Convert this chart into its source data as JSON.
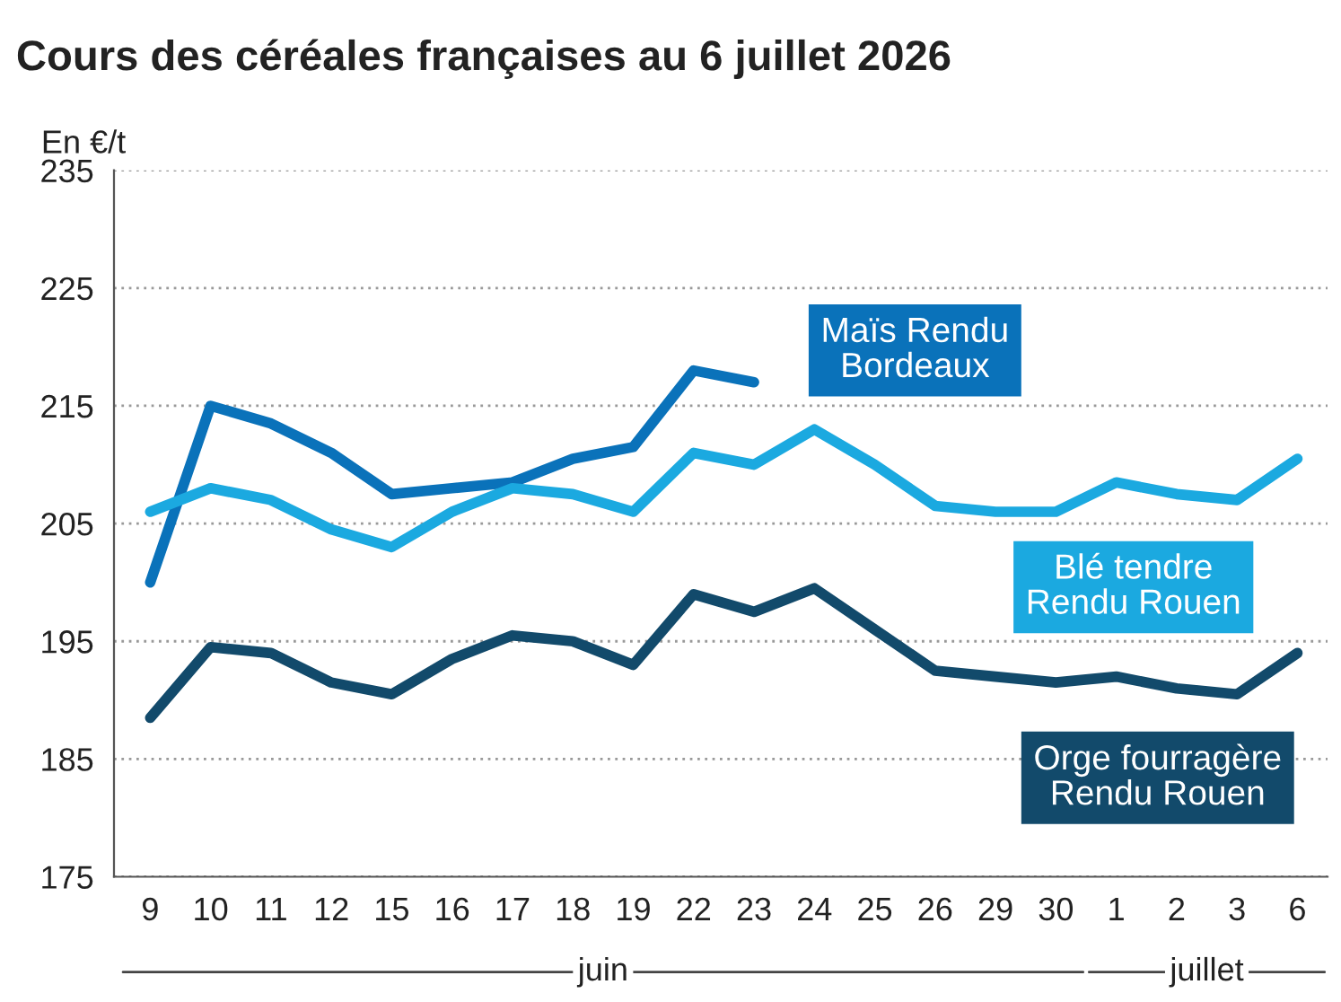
{
  "chart_data": {
    "type": "line",
    "title": "Cours des céréales françaises au 6 juillet 2026",
    "ylabel": "En €/t",
    "categories": [
      "9",
      "10",
      "11",
      "12",
      "15",
      "16",
      "17",
      "18",
      "19",
      "22",
      "23",
      "24",
      "25",
      "26",
      "29",
      "30",
      "1",
      "2",
      "3",
      "6"
    ],
    "series": [
      {
        "name": "Maïs Rendu\nBordeaux",
        "color": "#0a72ba",
        "values": [
          200,
          215,
          213.5,
          211,
          207.5,
          208,
          208.5,
          210.5,
          211.5,
          218,
          217,
          null,
          null,
          null,
          null,
          null,
          null,
          null,
          null,
          null
        ]
      },
      {
        "name": "Blé tendre\nRendu Rouen",
        "color": "#1ba9e0",
        "values": [
          206,
          208,
          207,
          204.5,
          203,
          206,
          208,
          207.5,
          206,
          211,
          210,
          213,
          210,
          206.5,
          206,
          206,
          208.5,
          207.5,
          207,
          210.5
        ]
      },
      {
        "name": "Orge fourragère\nRendu Rouen",
        "color": "#124a6b",
        "values": [
          188.5,
          194.5,
          194,
          191.5,
          190.5,
          193.5,
          195.5,
          195,
          193,
          199,
          197.5,
          199.5,
          196,
          192.5,
          192,
          191.5,
          192,
          191,
          190.5,
          194
        ]
      }
    ],
    "ylim": [
      175,
      235
    ],
    "yticks": [
      175,
      185,
      195,
      205,
      215,
      225,
      235
    ],
    "grid": "y",
    "line_style": "solid",
    "marker": "none",
    "annotations": [
      "juin",
      "juillet"
    ]
  }
}
